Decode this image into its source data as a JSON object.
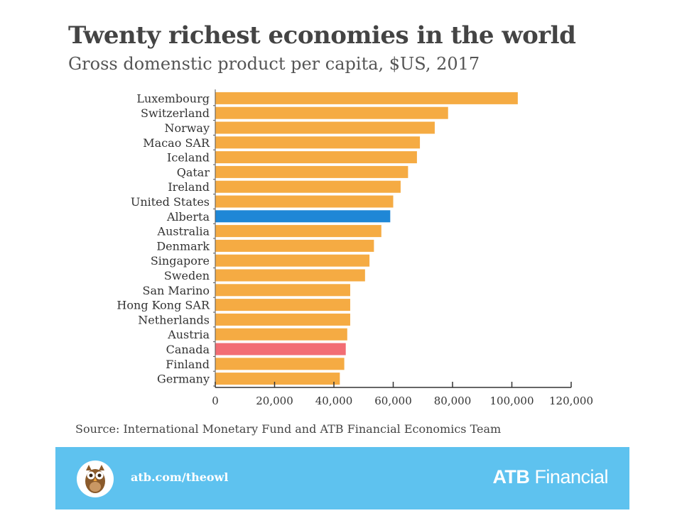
{
  "chart_data": {
    "type": "bar",
    "orientation": "horizontal",
    "title": "Twenty richest economies in the world",
    "subtitle": "Gross domenstic product per capita, $US, 2017",
    "categories": [
      "Luxembourg",
      "Switzerland",
      "Norway",
      "Macao SAR",
      "Iceland",
      "Qatar",
      "Ireland",
      "United States",
      "Alberta",
      "Australia",
      "Denmark",
      "Singapore",
      "Sweden",
      "San Marino",
      "Hong Kong SAR",
      "Netherlands",
      "Austria",
      "Canada",
      "Finland",
      "Germany"
    ],
    "values": [
      102000,
      78500,
      74000,
      69000,
      68000,
      65000,
      62500,
      60000,
      59000,
      56000,
      53500,
      52000,
      50500,
      45500,
      45500,
      45500,
      44500,
      44000,
      43500,
      42000
    ],
    "bar_colors": [
      "#f5ab43",
      "#f5ab43",
      "#f5ab43",
      "#f5ab43",
      "#f5ab43",
      "#f5ab43",
      "#f5ab43",
      "#f5ab43",
      "#1f87d6",
      "#f5ab43",
      "#f5ab43",
      "#f5ab43",
      "#f5ab43",
      "#f5ab43",
      "#f5ab43",
      "#f5ab43",
      "#f5ab43",
      "#f26d74",
      "#f5ab43",
      "#f5ab43"
    ],
    "xlim": [
      0,
      120000
    ],
    "xticks": [
      0,
      20000,
      40000,
      60000,
      80000,
      100000,
      120000
    ],
    "xtick_labels": [
      "0",
      "20,000",
      "40,000",
      "60,000",
      "80,000",
      "100,000",
      "120,000"
    ],
    "grid": false,
    "legend": "none"
  },
  "source": "Source: International Monetary Fund and ATB Financial Economics Team",
  "footer": {
    "link": "atb.com/theowl",
    "brand_bold": "ATB",
    "brand_rest": " Financial",
    "background": "#5ec2ef",
    "icon": "owl-icon"
  }
}
